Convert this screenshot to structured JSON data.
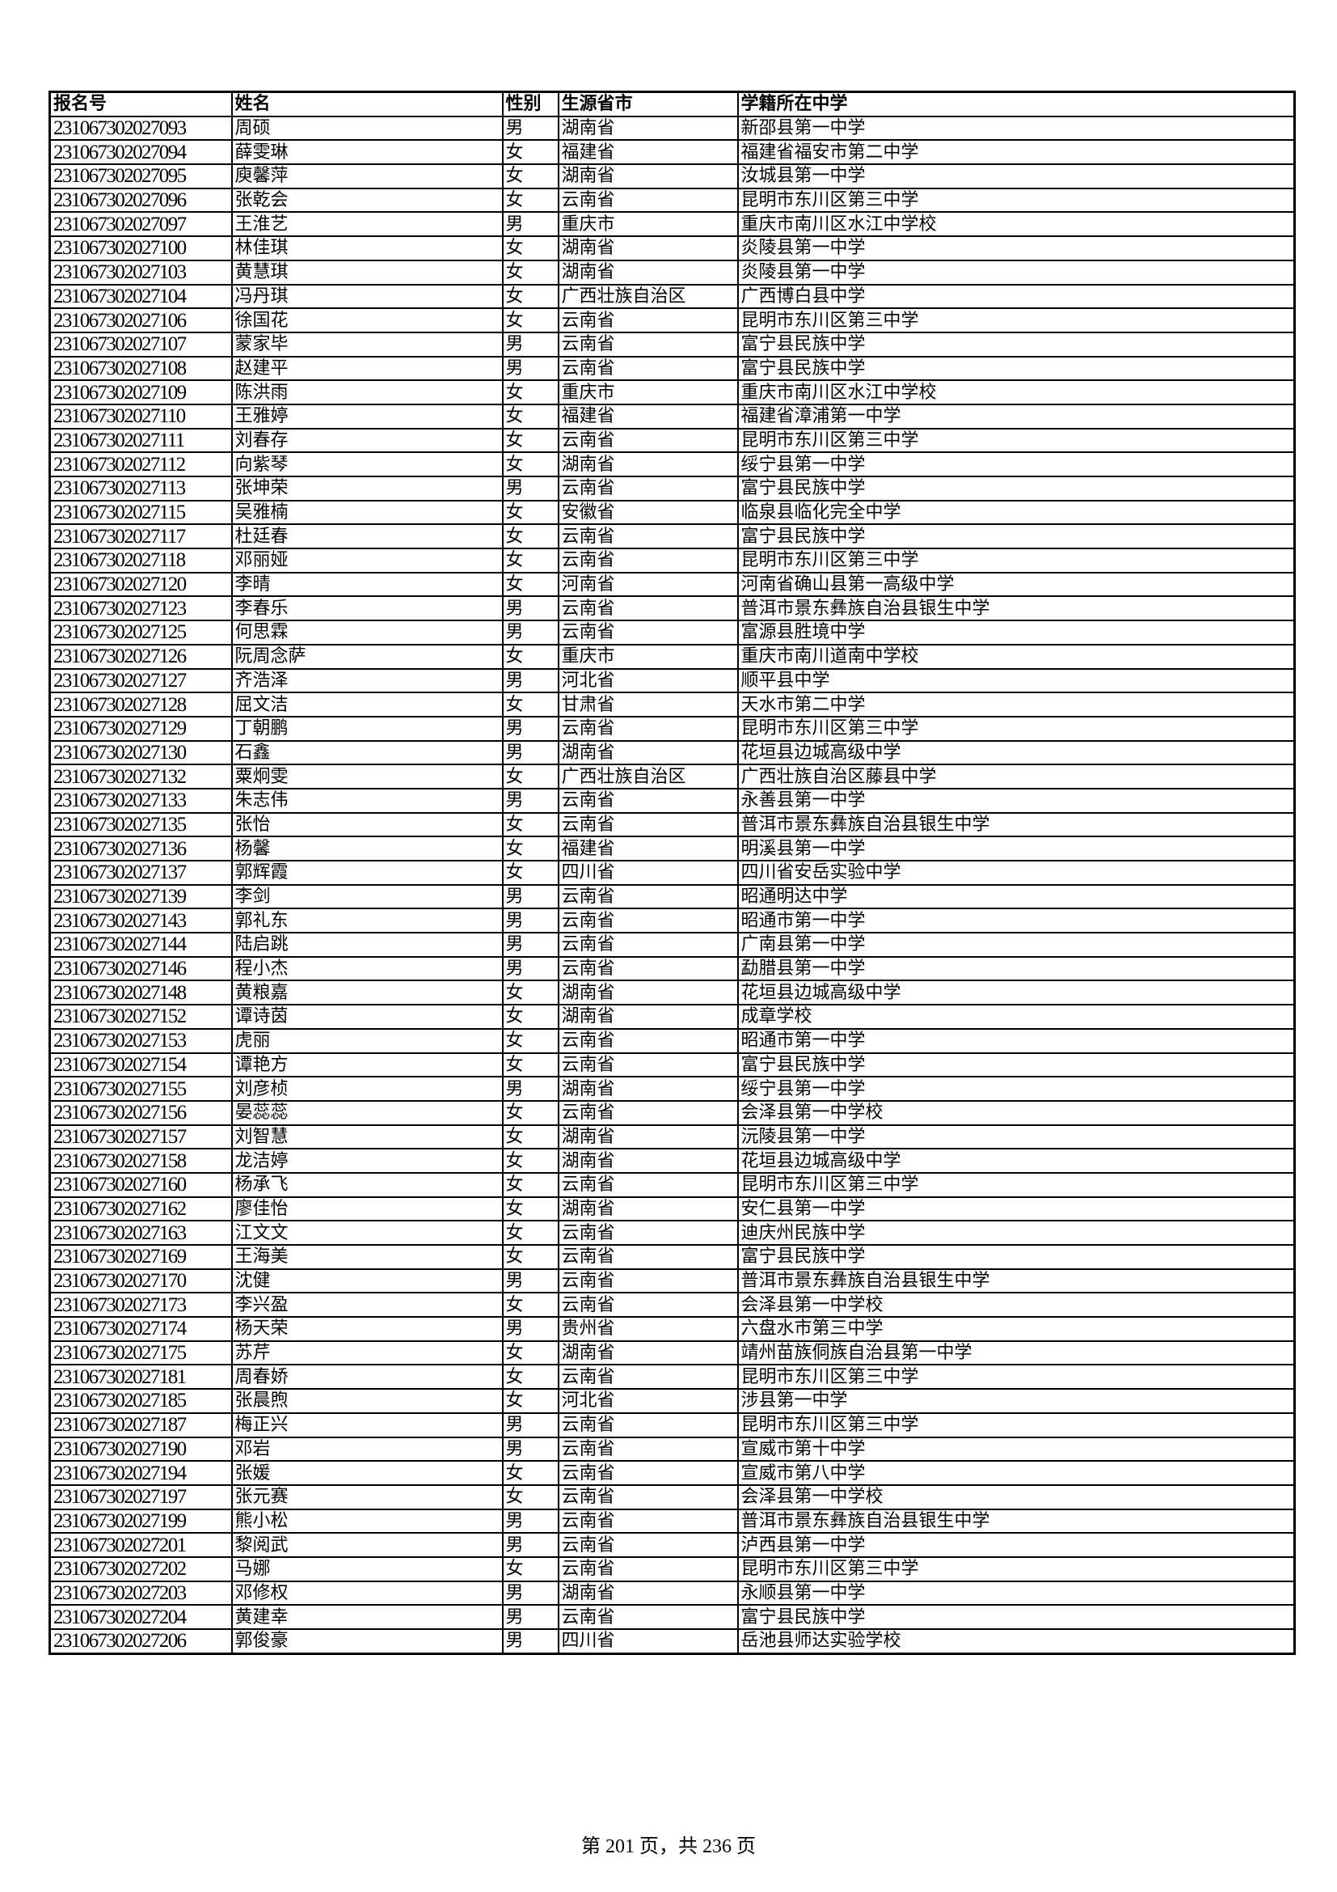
{
  "table": {
    "headers": [
      "报名号",
      "姓名",
      "性别",
      "生源省市",
      "学籍所在中学"
    ],
    "rows": [
      [
        "231067302027093",
        "周硕",
        "男",
        "湖南省",
        "新邵县第一中学"
      ],
      [
        "231067302027094",
        "薛雯琳",
        "女",
        "福建省",
        "福建省福安市第二中学"
      ],
      [
        "231067302027095",
        "庾馨萍",
        "女",
        "湖南省",
        "汝城县第一中学"
      ],
      [
        "231067302027096",
        "张乾会",
        "女",
        "云南省",
        "昆明市东川区第三中学"
      ],
      [
        "231067302027097",
        "王淮艺",
        "男",
        "重庆市",
        "重庆市南川区水江中学校"
      ],
      [
        "231067302027100",
        "林佳琪",
        "女",
        "湖南省",
        "炎陵县第一中学"
      ],
      [
        "231067302027103",
        "黄慧琪",
        "女",
        "湖南省",
        "炎陵县第一中学"
      ],
      [
        "231067302027104",
        "冯丹琪",
        "女",
        "广西壮族自治区",
        "广西博白县中学"
      ],
      [
        "231067302027106",
        "徐国花",
        "女",
        "云南省",
        "昆明市东川区第三中学"
      ],
      [
        "231067302027107",
        "蒙家毕",
        "男",
        "云南省",
        "富宁县民族中学"
      ],
      [
        "231067302027108",
        "赵建平",
        "男",
        "云南省",
        "富宁县民族中学"
      ],
      [
        "231067302027109",
        "陈洪雨",
        "女",
        "重庆市",
        "重庆市南川区水江中学校"
      ],
      [
        "231067302027110",
        "王雅婷",
        "女",
        "福建省",
        "福建省漳浦第一中学"
      ],
      [
        "231067302027111",
        "刘春存",
        "女",
        "云南省",
        "昆明市东川区第三中学"
      ],
      [
        "231067302027112",
        "向紫琴",
        "女",
        "湖南省",
        "绥宁县第一中学"
      ],
      [
        "231067302027113",
        "张坤荣",
        "男",
        "云南省",
        "富宁县民族中学"
      ],
      [
        "231067302027115",
        "吴雅楠",
        "女",
        "安徽省",
        "临泉县临化完全中学"
      ],
      [
        "231067302027117",
        "杜廷春",
        "女",
        "云南省",
        "富宁县民族中学"
      ],
      [
        "231067302027118",
        "邓丽娅",
        "女",
        "云南省",
        "昆明市东川区第三中学"
      ],
      [
        "231067302027120",
        "李晴",
        "女",
        "河南省",
        "河南省确山县第一高级中学"
      ],
      [
        "231067302027123",
        "李春乐",
        "男",
        "云南省",
        "普洱市景东彝族自治县银生中学"
      ],
      [
        "231067302027125",
        "何思霖",
        "男",
        "云南省",
        "富源县胜境中学"
      ],
      [
        "231067302027126",
        "阮周念萨",
        "女",
        "重庆市",
        "重庆市南川道南中学校"
      ],
      [
        "231067302027127",
        "齐浩泽",
        "男",
        "河北省",
        "顺平县中学"
      ],
      [
        "231067302027128",
        "屈文洁",
        "女",
        "甘肃省",
        "天水市第二中学"
      ],
      [
        "231067302027129",
        "丁朝鹏",
        "男",
        "云南省",
        "昆明市东川区第三中学"
      ],
      [
        "231067302027130",
        "石鑫",
        "男",
        "湖南省",
        "花垣县边城高级中学"
      ],
      [
        "231067302027132",
        "粟炯雯",
        "女",
        "广西壮族自治区",
        "广西壮族自治区藤县中学"
      ],
      [
        "231067302027133",
        "朱志伟",
        "男",
        "云南省",
        "永善县第一中学"
      ],
      [
        "231067302027135",
        "张怡",
        "女",
        "云南省",
        "普洱市景东彝族自治县银生中学"
      ],
      [
        "231067302027136",
        "杨馨",
        "女",
        "福建省",
        "明溪县第一中学"
      ],
      [
        "231067302027137",
        "郭辉霞",
        "女",
        "四川省",
        "四川省安岳实验中学"
      ],
      [
        "231067302027139",
        "李剑",
        "男",
        "云南省",
        "昭通明达中学"
      ],
      [
        "231067302027143",
        "郭礼东",
        "男",
        "云南省",
        "昭通市第一中学"
      ],
      [
        "231067302027144",
        "陆启跳",
        "男",
        "云南省",
        "广南县第一中学"
      ],
      [
        "231067302027146",
        "程小杰",
        "男",
        "云南省",
        "勐腊县第一中学"
      ],
      [
        "231067302027148",
        "黄粮嘉",
        "女",
        "湖南省",
        "花垣县边城高级中学"
      ],
      [
        "231067302027152",
        "谭诗茵",
        "女",
        "湖南省",
        "成章学校"
      ],
      [
        "231067302027153",
        "虎丽",
        "女",
        "云南省",
        "昭通市第一中学"
      ],
      [
        "231067302027154",
        "谭艳方",
        "女",
        "云南省",
        "富宁县民族中学"
      ],
      [
        "231067302027155",
        "刘彦桢",
        "男",
        "湖南省",
        "绥宁县第一中学"
      ],
      [
        "231067302027156",
        "晏蕊蕊",
        "女",
        "云南省",
        "会泽县第一中学校"
      ],
      [
        "231067302027157",
        "刘智慧",
        "女",
        "湖南省",
        "沅陵县第一中学"
      ],
      [
        "231067302027158",
        "龙洁婷",
        "女",
        "湖南省",
        "花垣县边城高级中学"
      ],
      [
        "231067302027160",
        "杨承飞",
        "女",
        "云南省",
        "昆明市东川区第三中学"
      ],
      [
        "231067302027162",
        "廖佳怡",
        "女",
        "湖南省",
        "安仁县第一中学"
      ],
      [
        "231067302027163",
        "江文文",
        "女",
        "云南省",
        "迪庆州民族中学"
      ],
      [
        "231067302027169",
        "王海美",
        "女",
        "云南省",
        "富宁县民族中学"
      ],
      [
        "231067302027170",
        "沈健",
        "男",
        "云南省",
        "普洱市景东彝族自治县银生中学"
      ],
      [
        "231067302027173",
        "李兴盈",
        "女",
        "云南省",
        "会泽县第一中学校"
      ],
      [
        "231067302027174",
        "杨天荣",
        "男",
        "贵州省",
        "六盘水市第三中学"
      ],
      [
        "231067302027175",
        "苏芹",
        "女",
        "湖南省",
        "靖州苗族侗族自治县第一中学"
      ],
      [
        "231067302027181",
        "周春娇",
        "女",
        "云南省",
        "昆明市东川区第三中学"
      ],
      [
        "231067302027185",
        "张晨煦",
        "女",
        "河北省",
        "涉县第一中学"
      ],
      [
        "231067302027187",
        "梅正兴",
        "男",
        "云南省",
        "昆明市东川区第三中学"
      ],
      [
        "231067302027190",
        "邓岩",
        "男",
        "云南省",
        "宣威市第十中学"
      ],
      [
        "231067302027194",
        "张媛",
        "女",
        "云南省",
        "宣威市第八中学"
      ],
      [
        "231067302027197",
        "张元赛",
        "女",
        "云南省",
        "会泽县第一中学校"
      ],
      [
        "231067302027199",
        "熊小松",
        "男",
        "云南省",
        "普洱市景东彝族自治县银生中学"
      ],
      [
        "231067302027201",
        "黎阅武",
        "男",
        "云南省",
        "泸西县第一中学"
      ],
      [
        "231067302027202",
        "马娜",
        "女",
        "云南省",
        "昆明市东川区第三中学"
      ],
      [
        "231067302027203",
        "邓修权",
        "男",
        "湖南省",
        "永顺县第一中学"
      ],
      [
        "231067302027204",
        "黄建幸",
        "男",
        "云南省",
        "富宁县民族中学"
      ],
      [
        "231067302027206",
        "郭俊豪",
        "男",
        "四川省",
        "岳池县师达实验学校"
      ]
    ]
  },
  "footer": {
    "page_text": "第 201 页，共 236 页"
  }
}
